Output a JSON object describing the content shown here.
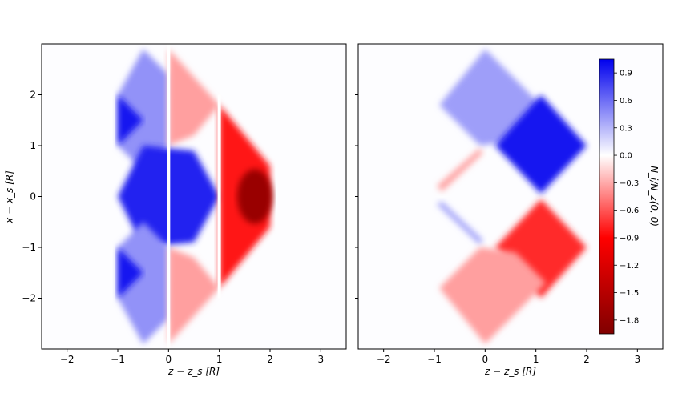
{
  "chart_data": [
    {
      "type": "heatmap",
      "title": "",
      "xlabel": "z − z_s [R]",
      "ylabel": "x − x_s [R]",
      "xlim": [
        -2.5,
        3.5
      ],
      "ylim": [
        -3.0,
        3.0
      ],
      "xticks": [
        -2,
        -1,
        0,
        1,
        2,
        3
      ],
      "yticks": [
        -2,
        -1,
        0,
        1,
        2
      ],
      "xtick_labels": [
        "−2",
        "−1",
        "0",
        "1",
        "2",
        "3"
      ],
      "ytick_labels": [
        "−2",
        "−1",
        "0",
        "1",
        "2"
      ],
      "colormap": "seismic (blue positive, white zero, red negative)",
      "regions": [
        {
          "shape": "diamond",
          "center": [
            -0.5,
            1.5
          ],
          "value": 0.45
        },
        {
          "shape": "triangle",
          "vertices": [
            [
              -1,
              2
            ],
            [
              -1,
              1
            ],
            [
              -0.5,
              1.5
            ]
          ],
          "value": 0.95
        },
        {
          "shape": "diamond",
          "center": [
            -0.5,
            0
          ],
          "value": 0.9
        },
        {
          "shape": "triangle",
          "vertices": [
            [
              -1,
              -1
            ],
            [
              -1,
              -2
            ],
            [
              -0.5,
              -1.5
            ]
          ],
          "value": 0.95
        },
        {
          "shape": "diamond",
          "center": [
            -0.5,
            -1.5
          ],
          "value": 0.45
        },
        {
          "shape": "diamond",
          "center": [
            0.5,
            1.5
          ],
          "value": -0.45
        },
        {
          "shape": "diamond",
          "center": [
            0.5,
            -1.5
          ],
          "value": -0.45
        },
        {
          "shape": "band",
          "x": [
            1,
            2
          ],
          "value": -1.1,
          "min_at": [
            1.7,
            0
          ],
          "min_value": -1.8
        }
      ]
    },
    {
      "type": "heatmap",
      "title": "",
      "xlabel": "z − z_s [R]",
      "ylabel": "",
      "xlim": [
        -2.5,
        3.5
      ],
      "ylim": [
        -3.0,
        3.0
      ],
      "xticks": [
        -2,
        -1,
        0,
        1,
        2,
        3
      ],
      "xtick_labels": [
        "−2",
        "−1",
        "0",
        "1",
        "2",
        "3"
      ],
      "colormap": "seismic (blue positive, white zero, red negative)",
      "regions": [
        {
          "shape": "band",
          "from": [
            0,
            2.9
          ],
          "to": [
            1.6,
            1.3
          ],
          "value": 0.4
        },
        {
          "shape": "rounded-square",
          "center": [
            1.1,
            1.0
          ],
          "value": 0.95
        },
        {
          "shape": "strip",
          "from": [
            -0.95,
            0.15
          ],
          "to": [
            -0.1,
            0.95
          ],
          "value": -0.45
        },
        {
          "shape": "strip",
          "from": [
            -0.95,
            -0.15
          ],
          "to": [
            -0.1,
            -0.9
          ],
          "value": 0.4
        },
        {
          "shape": "rounded-square",
          "center": [
            1.1,
            -1.0
          ],
          "value": -1.0
        },
        {
          "shape": "band",
          "from": [
            0,
            -2.9
          ],
          "to": [
            1.6,
            -1.3
          ],
          "value": -0.45
        }
      ]
    }
  ],
  "colorbar": {
    "label": "N_i/N_z(0, 0)",
    "min": -1.95,
    "max": 1.05,
    "ticks": [
      0.9,
      0.6,
      0.3,
      0.0,
      -0.3,
      -0.6,
      -0.9,
      -1.2,
      -1.5,
      -1.8
    ],
    "tick_labels": [
      "0.9",
      "0.6",
      "0.3",
      "0.0",
      "−0.3",
      "−0.6",
      "−0.9",
      "−1.2",
      "−1.5",
      "−1.8"
    ]
  }
}
